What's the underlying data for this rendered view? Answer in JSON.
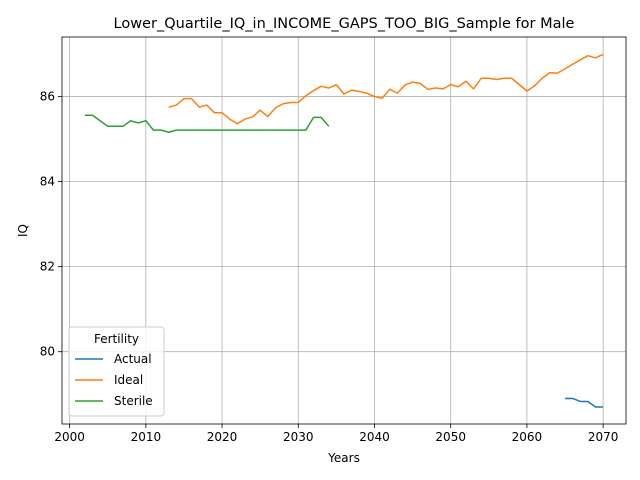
{
  "chart_data": {
    "type": "line",
    "title": "Lower_Quartile_IQ_in_INCOME_GAPS_TOO_BIG_Sample for Male",
    "xlabel": "Years",
    "ylabel": "IQ",
    "xlim": [
      1999,
      2073
    ],
    "ylim": [
      78.3,
      87.4
    ],
    "xticks": [
      2000,
      2010,
      2020,
      2030,
      2040,
      2050,
      2060,
      2070
    ],
    "yticks": [
      80,
      82,
      84,
      86
    ],
    "grid": true,
    "legend": {
      "title": "Fertility",
      "placement": "lower-left"
    },
    "series": [
      {
        "name": "Actual",
        "color": "#1f77b4",
        "x": [
          2065,
          2066,
          2067,
          2068,
          2069,
          2070
        ],
        "y": [
          78.9,
          78.9,
          78.83,
          78.83,
          78.7,
          78.7
        ]
      },
      {
        "name": "Ideal",
        "color": "#ff7f0e",
        "x": [
          2013,
          2014,
          2015,
          2016,
          2017,
          2018,
          2019,
          2020,
          2021,
          2022,
          2023,
          2024,
          2025,
          2026,
          2027,
          2028,
          2029,
          2030,
          2031,
          2032,
          2033,
          2034,
          2035,
          2036,
          2037,
          2038,
          2039,
          2040,
          2041,
          2042,
          2043,
          2044,
          2045,
          2046,
          2047,
          2048,
          2049,
          2050,
          2051,
          2052,
          2053,
          2054,
          2055,
          2056,
          2057,
          2058,
          2059,
          2060,
          2061,
          2062,
          2063,
          2064,
          2065,
          2066,
          2067,
          2068,
          2069,
          2070
        ],
        "y": [
          85.75,
          85.8,
          85.95,
          85.95,
          85.75,
          85.8,
          85.62,
          85.62,
          85.47,
          85.36,
          85.47,
          85.52,
          85.68,
          85.53,
          85.73,
          85.83,
          85.86,
          85.86,
          86.02,
          86.14,
          86.24,
          86.2,
          86.28,
          86.06,
          86.15,
          86.12,
          86.08,
          86.0,
          85.96,
          86.17,
          86.08,
          86.27,
          86.34,
          86.31,
          86.17,
          86.2,
          86.18,
          86.28,
          86.23,
          86.36,
          86.18,
          86.43,
          86.43,
          86.4,
          86.43,
          86.43,
          86.28,
          86.13,
          86.25,
          86.43,
          86.56,
          86.55,
          86.65,
          86.76,
          86.86,
          86.96,
          86.91,
          86.99
        ]
      },
      {
        "name": "Sterile",
        "color": "#2ca02c",
        "x": [
          2002,
          2003,
          2004,
          2005,
          2006,
          2007,
          2008,
          2009,
          2010,
          2011,
          2012,
          2013,
          2014,
          2015,
          2016,
          2017,
          2018,
          2019,
          2020,
          2021,
          2022,
          2023,
          2024,
          2025,
          2026,
          2027,
          2028,
          2029,
          2030,
          2031,
          2032,
          2033,
          2034
        ],
        "y": [
          85.56,
          85.56,
          85.43,
          85.3,
          85.3,
          85.3,
          85.43,
          85.38,
          85.43,
          85.21,
          85.21,
          85.16,
          85.21,
          85.21,
          85.21,
          85.21,
          85.21,
          85.21,
          85.21,
          85.21,
          85.21,
          85.21,
          85.21,
          85.21,
          85.21,
          85.21,
          85.21,
          85.21,
          85.21,
          85.21,
          85.51,
          85.51,
          85.3
        ]
      }
    ]
  }
}
